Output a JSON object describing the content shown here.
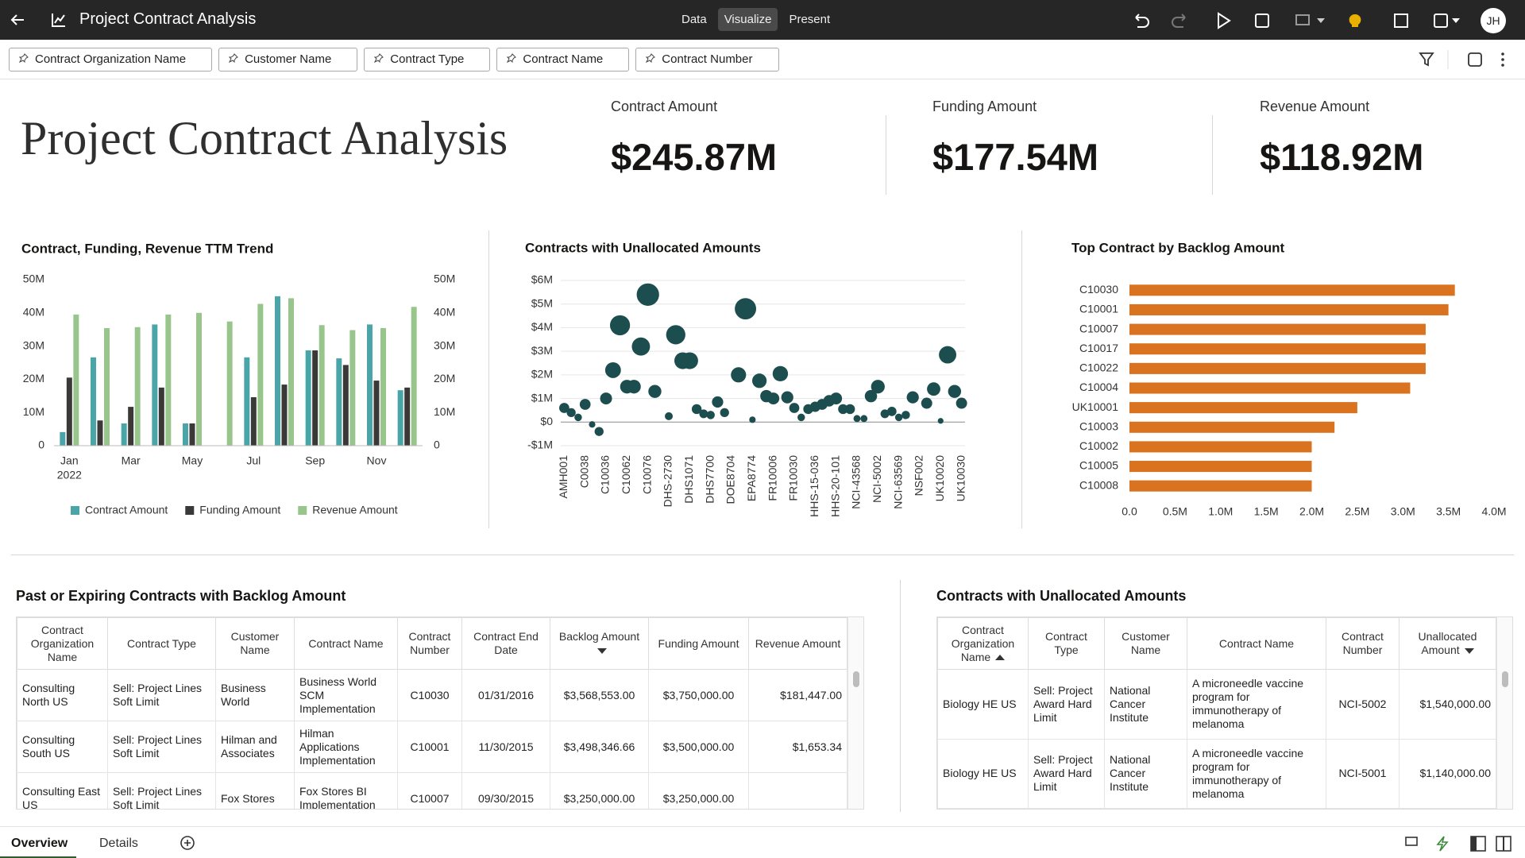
{
  "header": {
    "title": "Project Contract Analysis",
    "modes": [
      "Data",
      "Visualize",
      "Present"
    ],
    "active_mode": 1,
    "avatar": "JH"
  },
  "filters": [
    "Contract Organization Name",
    "Customer Name",
    "Contract Type",
    "Contract Name",
    "Contract Number"
  ],
  "canvas_title": "Project Contract Analysis",
  "kpis": [
    {
      "label": "Contract Amount",
      "value": "$245.87M"
    },
    {
      "label": "Funding Amount",
      "value": "$177.54M"
    },
    {
      "label": "Revenue Amount",
      "value": "$118.92M"
    }
  ],
  "chart_data": [
    {
      "type": "bar",
      "title": "Contract, Funding, Revenue TTM Trend",
      "categories": [
        "Jan",
        null,
        "Mar",
        null,
        "May",
        null,
        "Jul",
        null,
        "Sep",
        null,
        "Nov",
        null
      ],
      "year_label": "2022",
      "series": [
        {
          "name": "Contract Amount",
          "color": "#4aa5a8",
          "values": [
            4.1,
            26.6,
            6.7,
            36.5,
            6.7,
            0,
            26.6,
            45,
            28.7,
            26.3,
            36.5,
            16.7
          ]
        },
        {
          "name": "Funding Amount",
          "color": "#3b3838",
          "values": [
            20.5,
            7.6,
            11.7,
            17.5,
            6.7,
            0,
            14.6,
            18.4,
            28.7,
            24.3,
            19.6,
            17.5
          ]
        },
        {
          "name": "Revenue Amount",
          "color": "#97c58c",
          "values": [
            39.5,
            35.4,
            35.7,
            39.5,
            40,
            37.4,
            42.7,
            44.4,
            36.3,
            34.8,
            35.4,
            41.8
          ]
        }
      ],
      "ylim": [
        0,
        50
      ],
      "yticks": [
        {
          "value": 0,
          "label": "0"
        },
        {
          "value": 10,
          "label": "10M"
        },
        {
          "value": 20,
          "label": "20M"
        },
        {
          "value": 30,
          "label": "30M"
        },
        {
          "value": 40,
          "label": "40M"
        },
        {
          "value": 50,
          "label": "50M"
        }
      ],
      "y2lim": [
        0,
        50
      ],
      "y2ticks": [
        {
          "value": 0,
          "label": "0"
        },
        {
          "value": 10,
          "label": "10M"
        },
        {
          "value": 20,
          "label": "20M"
        },
        {
          "value": 30,
          "label": "30M"
        },
        {
          "value": 40,
          "label": "40M"
        },
        {
          "value": 50,
          "label": "50M"
        }
      ],
      "grid": false,
      "legend": "bottom"
    },
    {
      "type": "bubble",
      "title": "Contracts with Unallocated Amounts",
      "color": "#1d4e4f",
      "categories": [
        "AMH001",
        null,
        null,
        "C0038",
        null,
        null,
        "C10036",
        null,
        null,
        "C10062",
        null,
        null,
        "C10076",
        null,
        null,
        "DHS-2730",
        null,
        null,
        "DHS1071",
        null,
        null,
        "DHS7700",
        null,
        null,
        "DOE8704",
        null,
        null,
        "EPA8774",
        null,
        null,
        "FR10006",
        null,
        null,
        "FR10030",
        null,
        null,
        "HHS-15-036",
        null,
        null,
        "HHS-20-101",
        null,
        null,
        "NCI-43568",
        null,
        null,
        "NCI-5002",
        null,
        null,
        "NCI-63569",
        null,
        null,
        "NSF002",
        null,
        null,
        "UK10020",
        null,
        null,
        "UK10030"
      ],
      "values": [
        0.6,
        0.4,
        0.2,
        0.75,
        -0.1,
        -0.4,
        1.0,
        2.2,
        4.1,
        1.5,
        1.5,
        3.2,
        5.4,
        1.3,
        null,
        0.25,
        3.7,
        2.6,
        2.6,
        0.55,
        0.35,
        0.3,
        0.85,
        0.4,
        null,
        2.0,
        4.8,
        0.1,
        1.75,
        1.1,
        1.0,
        2.05,
        1.05,
        0.6,
        0.2,
        0.55,
        0.65,
        0.75,
        0.9,
        1.0,
        0.55,
        0.55,
        0.15,
        0.15,
        1.1,
        1.5,
        0.35,
        0.45,
        0.2,
        0.3,
        1.05,
        null,
        0.8,
        1.4,
        0.05,
        2.85,
        1.3,
        0.8
      ],
      "ylim": [
        -1,
        6
      ],
      "yticks": [
        {
          "value": -1,
          "label": "-$1M"
        },
        {
          "value": 0,
          "label": "$0"
        },
        {
          "value": 1,
          "label": "$1M"
        },
        {
          "value": 2,
          "label": "$2M"
        },
        {
          "value": 3,
          "label": "$3M"
        },
        {
          "value": 4,
          "label": "$4M"
        },
        {
          "value": 5,
          "label": "$5M"
        },
        {
          "value": 6,
          "label": "$6M"
        }
      ],
      "grid": true
    },
    {
      "type": "hbar",
      "title": "Top Contract by Backlog Amount",
      "color": "#d9731f",
      "categories": [
        "C10030",
        "C10001",
        "C10007",
        "C10017",
        "C10022",
        "C10004",
        "UK10001",
        "C10003",
        "C10002",
        "C10005",
        "C10008"
      ],
      "values": [
        3.57,
        3.5,
        3.25,
        3.25,
        3.25,
        3.08,
        2.5,
        2.25,
        2.0,
        2.0,
        2.0
      ],
      "xlim": [
        0,
        4
      ],
      "xticks": [
        {
          "value": 0,
          "label": "0.0"
        },
        {
          "value": 0.5,
          "label": "0.5M"
        },
        {
          "value": 1,
          "label": "1.0M"
        },
        {
          "value": 1.5,
          "label": "1.5M"
        },
        {
          "value": 2,
          "label": "2.0M"
        },
        {
          "value": 2.5,
          "label": "2.5M"
        },
        {
          "value": 3,
          "label": "3.0M"
        },
        {
          "value": 3.5,
          "label": "3.5M"
        },
        {
          "value": 4,
          "label": "4.0M"
        }
      ],
      "grid": false
    }
  ],
  "tables": [
    {
      "title": "Past or Expiring Contracts with Backlog Amount",
      "columns": [
        "Contract Organization Name",
        "Contract Type",
        "Customer Name",
        "Contract Name",
        "Contract Number",
        "Contract End Date",
        "Backlog Amount",
        "Funding Amount",
        "Revenue Amount"
      ],
      "sort_indicators": [
        {
          "column": 6,
          "direction": "desc"
        }
      ],
      "rows": [
        [
          "Consulting North US",
          "Sell: Project Lines Soft Limit",
          "Business World",
          "Business World SCM Implementation",
          "C10030",
          "01/31/2016",
          "$3,568,553.00",
          "$3,750,000.00",
          "$181,447.00"
        ],
        [
          "Consulting South US",
          "Sell: Project Lines Soft Limit",
          "Hilman and Associates",
          "Hilman Applications Implementation",
          "C10001",
          "11/30/2015",
          "$3,498,346.66",
          "$3,500,000.00",
          "$1,653.34"
        ],
        [
          "Consulting East US",
          "Sell: Project Lines Soft Limit",
          "Fox Stores",
          "Fox Stores BI Implementation",
          "C10007",
          "09/30/2015",
          "$3,250,000.00",
          "$3,250,000.00",
          ""
        ]
      ]
    },
    {
      "title": "Contracts with Unallocated Amounts",
      "columns": [
        "Contract Organization Name",
        "Contract Type",
        "Customer Name",
        "Contract Name",
        "Contract Number",
        "Unallocated Amount"
      ],
      "sort_indicators": [
        {
          "column": 0,
          "direction": "asc"
        },
        {
          "column": 5,
          "direction": "desc"
        }
      ],
      "rows": [
        [
          "Biology HE US",
          "Sell: Project Award Hard Limit",
          "National Cancer Institute",
          "A microneedle vaccine program for immunotherapy of melanoma",
          "NCI-5002",
          "$1,540,000.00"
        ],
        [
          "Biology HE US",
          "Sell: Project Award Hard Limit",
          "National Cancer Institute",
          "A microneedle vaccine program for immunotherapy of melanoma",
          "NCI-5001",
          "$1,140,000.00"
        ]
      ]
    }
  ],
  "tabs": [
    "Overview",
    "Details"
  ],
  "active_tab": 0
}
